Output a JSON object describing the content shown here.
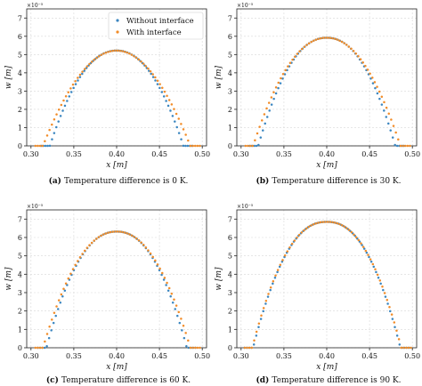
{
  "figure": {
    "legend": {
      "labels": [
        "Without interface",
        "With interface"
      ],
      "location": "upper-right"
    },
    "colors": {
      "without": "#3b86c0",
      "with": "#f28c28",
      "grid": "#d8d8d8",
      "axis": "#222222"
    }
  },
  "chart_data": [
    {
      "type": "scatter",
      "panel": "a",
      "caption": {
        "label": "(a)",
        "text": "Temperature difference is 0 K."
      },
      "xlabel": "x [m]",
      "ylabel": "w [m]",
      "y_exponent": "×10⁻⁵",
      "xlim": [
        0.295,
        0.505
      ],
      "ylim": [
        0,
        7.5
      ],
      "xticks": [
        "0.30",
        "0.35",
        "0.40",
        "0.45",
        "0.50"
      ],
      "yticks": [
        "0",
        "1",
        "2",
        "3",
        "4",
        "5",
        "6",
        "7"
      ],
      "grid": true,
      "legend": "upper-right",
      "series": [
        {
          "name": "Without interface",
          "peak_x": 0.4,
          "peak": 5.22,
          "x0": 0.322,
          "x1": 0.478,
          "shape": 0.44
        },
        {
          "name": "With interface",
          "peak_x": 0.4,
          "peak": 5.22,
          "x0": 0.314,
          "x1": 0.486,
          "shape": 0.3
        }
      ]
    },
    {
      "type": "scatter",
      "panel": "b",
      "caption": {
        "label": "(b)",
        "text": "Temperature difference is 30 K."
      },
      "xlabel": "x [m]",
      "ylabel": "w [m]",
      "y_exponent": "×10⁻⁵",
      "xlim": [
        0.295,
        0.505
      ],
      "ylim": [
        0,
        7.5
      ],
      "xticks": [
        "0.30",
        "0.35",
        "0.40",
        "0.45",
        "0.50"
      ],
      "yticks": [
        "0",
        "1",
        "2",
        "3",
        "4",
        "5",
        "6",
        "7"
      ],
      "grid": true,
      "series": [
        {
          "name": "Without interface",
          "peak_x": 0.4,
          "peak": 5.92,
          "x0": 0.32,
          "x1": 0.48,
          "shape": 0.5
        },
        {
          "name": "With interface",
          "peak_x": 0.4,
          "peak": 5.92,
          "x0": 0.314,
          "x1": 0.486,
          "shape": 0.4
        }
      ]
    },
    {
      "type": "scatter",
      "panel": "c",
      "caption": {
        "label": "(c)",
        "text": "Temperature difference is 60 K."
      },
      "xlabel": "x [m]",
      "ylabel": "w [m]",
      "y_exponent": "×10⁻⁵",
      "xlim": [
        0.295,
        0.505
      ],
      "ylim": [
        0,
        7.5
      ],
      "xticks": [
        "0.30",
        "0.35",
        "0.40",
        "0.45",
        "0.50"
      ],
      "yticks": [
        "0",
        "1",
        "2",
        "3",
        "4",
        "5",
        "6",
        "7"
      ],
      "grid": true,
      "series": [
        {
          "name": "Without interface",
          "peak_x": 0.4,
          "peak": 6.32,
          "x0": 0.318,
          "x1": 0.482,
          "shape": 0.52
        },
        {
          "name": "With interface",
          "peak_x": 0.4,
          "peak": 6.32,
          "x0": 0.314,
          "x1": 0.486,
          "shape": 0.46
        }
      ]
    },
    {
      "type": "scatter",
      "panel": "d",
      "caption": {
        "label": "(d)",
        "text": "Temperature difference is 90 K."
      },
      "xlabel": "x [m]",
      "ylabel": "w [m]",
      "y_exponent": "×10⁻⁵",
      "xlim": [
        0.295,
        0.505
      ],
      "ylim": [
        0,
        7.5
      ],
      "xticks": [
        "0.30",
        "0.35",
        "0.40",
        "0.45",
        "0.50"
      ],
      "yticks": [
        "0",
        "1",
        "2",
        "3",
        "4",
        "5",
        "6",
        "7"
      ],
      "grid": true,
      "series": [
        {
          "name": "Without interface",
          "peak_x": 0.4,
          "peak": 6.85,
          "x0": 0.314,
          "x1": 0.486,
          "shape": 0.58
        },
        {
          "name": "With interface",
          "peak_x": 0.4,
          "peak": 6.85,
          "x0": 0.313,
          "x1": 0.487,
          "shape": 0.56
        }
      ]
    }
  ]
}
